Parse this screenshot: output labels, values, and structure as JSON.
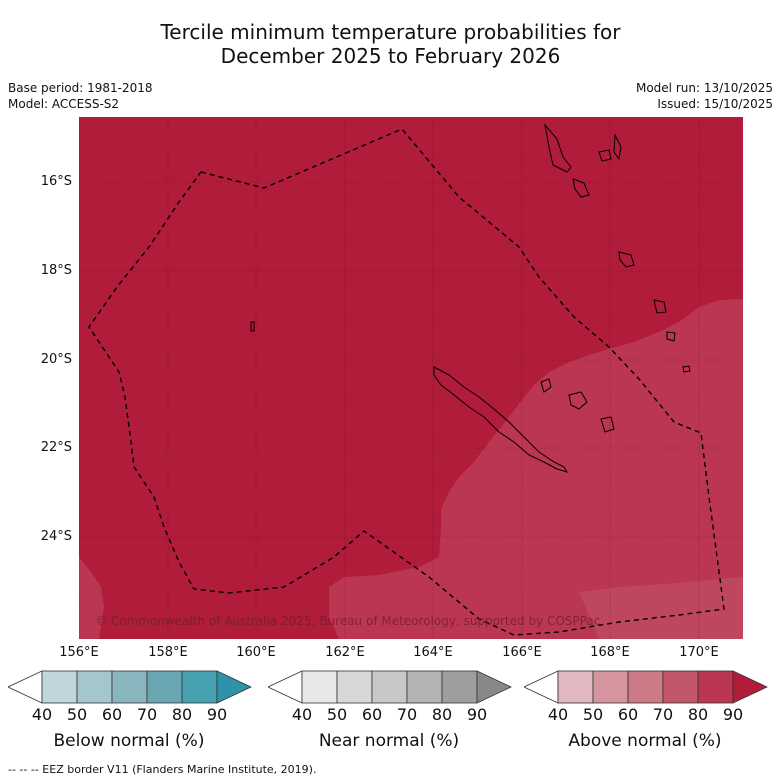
{
  "title_line1": "Tercile minimum temperature probabilities for",
  "title_line2": "December 2025 to February 2026",
  "base_period": "Base period: 1981-2018",
  "model": "Model: ACCESS-S2",
  "model_run": "Model run: 13/10/2025",
  "issued": "Issued: 15/10/2025",
  "lat_labels": [
    "16°S",
    "18°S",
    "20°S",
    "22°S",
    "24°S"
  ],
  "lon_labels": [
    "156°E",
    "158°E",
    "160°E",
    "162°E",
    "164°E",
    "166°E",
    "168°E",
    "170°E"
  ],
  "copyright": "© Commonwealth of Australia 2025, Bureau of Meteorology, supported by COSPPac",
  "colorbars": [
    {
      "title": "Below normal (%)",
      "ticks": [
        "40",
        "50",
        "60",
        "70",
        "80",
        "90"
      ],
      "colors": [
        "#ffffff",
        "#c1d5dc",
        "#a6c6cd",
        "#89b5bf",
        "#69a6b2",
        "#46a0af",
        "#2e93a9"
      ]
    },
    {
      "title": "Near normal (%)",
      "ticks": [
        "40",
        "50",
        "60",
        "70",
        "80",
        "90"
      ],
      "colors": [
        "#ffffff",
        "#e8e8e8",
        "#d8d8d8",
        "#c8c8c8",
        "#b4b4b4",
        "#9e9e9e",
        "#888888"
      ]
    },
    {
      "title": "Above normal (%)",
      "ticks": [
        "40",
        "50",
        "60",
        "70",
        "80",
        "90"
      ],
      "colors": [
        "#ffffff",
        "#e0b8bf",
        "#d5959f",
        "#cb7a86",
        "#c25769",
        "#bb3650",
        "#b01c3a"
      ]
    }
  ],
  "footer": "-- -- -- EEZ border V11 (Flanders Marine Institute, 2019).",
  "map_colors": {
    "above_90": "#b01c3a",
    "above_80": "#bb3650",
    "above_70": "#c25769"
  }
}
